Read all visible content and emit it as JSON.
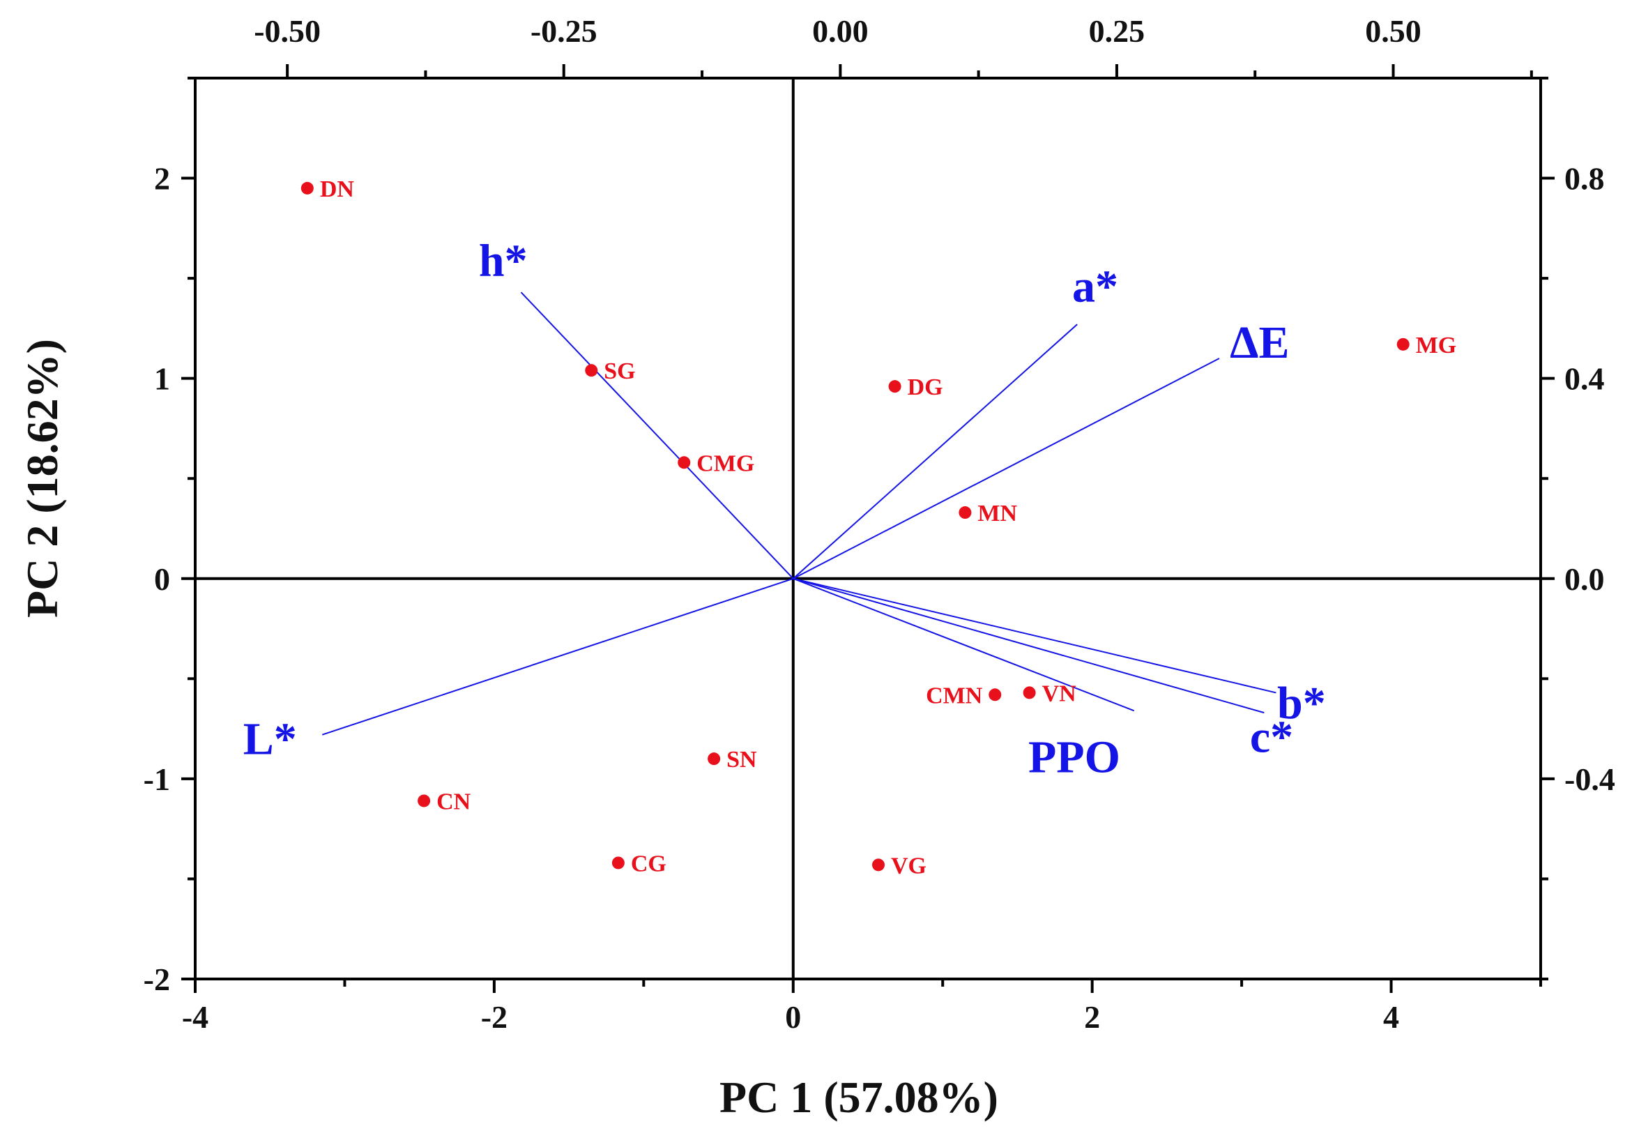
{
  "colors": {
    "scores": "#e8101a",
    "loadings": "#1414e6",
    "axis": "#000000",
    "text": "#111111"
  },
  "chart_data": {
    "type": "scatter",
    "subtype": "biplot",
    "xlabel": "PC 1 (57.08%)",
    "ylabel": "PC 2 (18.62%)",
    "xlim": [
      -4,
      5
    ],
    "ylim": [
      -2,
      2.5
    ],
    "x_ticks": [
      -4,
      -2,
      0,
      2,
      4
    ],
    "x_tick_labels": [
      "-4",
      "-2",
      "0",
      "2",
      "4"
    ],
    "y_ticks": [
      -2,
      -1,
      0,
      1,
      2
    ],
    "y_tick_labels": [
      "-2",
      "-1",
      "0",
      "1",
      "2"
    ],
    "top_axis": {
      "lim": [
        -0.5833,
        0.6333
      ],
      "ticks": [
        -0.5,
        -0.25,
        0,
        0.25,
        0.5
      ],
      "tick_labels": [
        "-0.50",
        "-0.25",
        "0.00",
        "0.25",
        "0.50"
      ]
    },
    "right_axis": {
      "lim": [
        -0.8,
        1.0
      ],
      "ticks": [
        -0.4,
        0,
        0.4,
        0.8
      ],
      "tick_labels": [
        "-0.4",
        "0.0",
        "0.4",
        "0.8"
      ]
    },
    "scores": [
      {
        "label": "DN",
        "x": -3.25,
        "y": 1.95,
        "label_side": "right"
      },
      {
        "label": "SG",
        "x": -1.35,
        "y": 1.04,
        "label_side": "right"
      },
      {
        "label": "CMG",
        "x": -0.73,
        "y": 0.58,
        "label_side": "right"
      },
      {
        "label": "DG",
        "x": 0.68,
        "y": 0.96,
        "label_side": "right"
      },
      {
        "label": "MG",
        "x": 4.08,
        "y": 1.17,
        "label_side": "right"
      },
      {
        "label": "MN",
        "x": 1.15,
        "y": 0.33,
        "label_side": "right"
      },
      {
        "label": "CMN",
        "x": 1.35,
        "y": -0.58,
        "label_side": "left"
      },
      {
        "label": "VN",
        "x": 1.58,
        "y": -0.57,
        "label_side": "right"
      },
      {
        "label": "SN",
        "x": -0.53,
        "y": -0.9,
        "label_side": "right"
      },
      {
        "label": "CN",
        "x": -2.47,
        "y": -1.11,
        "label_side": "right"
      },
      {
        "label": "CG",
        "x": -1.17,
        "y": -1.42,
        "label_side": "right"
      },
      {
        "label": "VG",
        "x": 0.57,
        "y": -1.43,
        "label_side": "right"
      }
    ],
    "loadings": [
      {
        "label": "h*",
        "x": -1.82,
        "y": 1.43,
        "label_dx": -0.12,
        "label_dy": 0.16
      },
      {
        "label": "a*",
        "x": 1.9,
        "y": 1.27,
        "label_dx": 0.12,
        "label_dy": 0.19
      },
      {
        "label": "ΔE",
        "x": 2.85,
        "y": 1.1,
        "label_dx": 0.27,
        "label_dy": 0.08
      },
      {
        "label": "L*",
        "x": -3.15,
        "y": -0.78,
        "label_dx": -0.35,
        "label_dy": -0.02
      },
      {
        "label": "b*",
        "x": 3.23,
        "y": -0.57,
        "label_dx": 0.17,
        "label_dy": -0.05
      },
      {
        "label": "c*",
        "x": 3.15,
        "y": -0.67,
        "label_dx": 0.05,
        "label_dy": -0.12
      },
      {
        "label": "PPO",
        "x": 2.28,
        "y": -0.66,
        "label_dx": -0.4,
        "label_dy": -0.23
      }
    ]
  }
}
